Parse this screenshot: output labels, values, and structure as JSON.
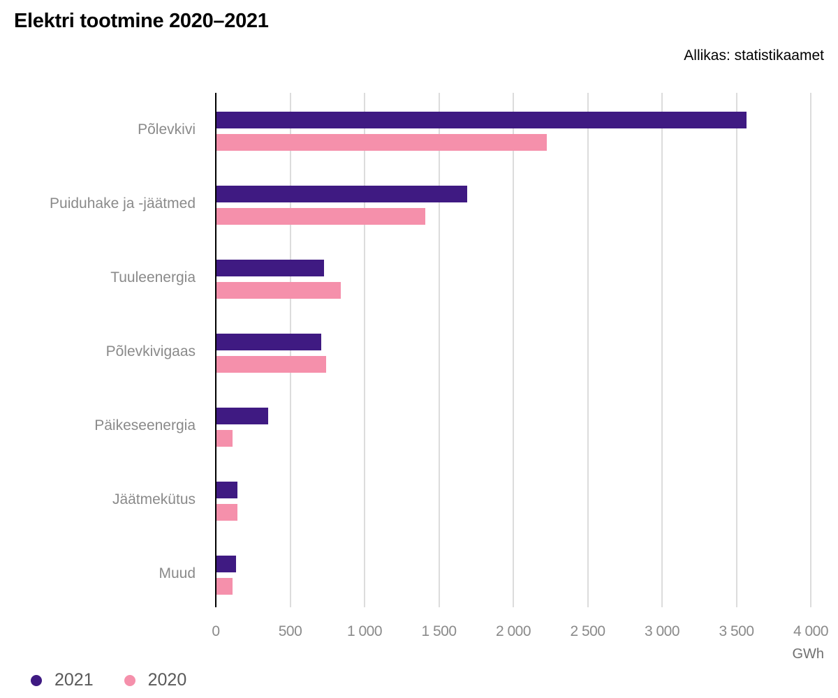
{
  "header": {
    "title": "Elektri tootmine 2020–2021",
    "source": "Allikas: statistikaamet"
  },
  "axis": {
    "ticks": [
      "0",
      "500",
      "1 000",
      "1 500",
      "2 000",
      "2 500",
      "3 000",
      "3 500",
      "4 000"
    ],
    "unit": "GWh"
  },
  "legend": {
    "items": [
      {
        "label": "2021",
        "color": "#3f1a82"
      },
      {
        "label": "2020",
        "color": "#f590ab"
      }
    ]
  },
  "categories": [
    "Põlevkivi",
    "Puiduhake ja -jäätmed",
    "Tuuleenergia",
    "Põlevkivigaas",
    "Päikeseenergia",
    "Jäätmekütus",
    "Muud"
  ],
  "chart_data": {
    "type": "bar",
    "orientation": "horizontal",
    "title": "Elektri tootmine 2020–2021",
    "subtitle": "Allikas: statistikaamet",
    "xlabel": "GWh",
    "ylabel": "",
    "xlim": [
      0,
      4000
    ],
    "xticks": [
      0,
      500,
      1000,
      1500,
      2000,
      2500,
      3000,
      3500,
      4000
    ],
    "grid": true,
    "legend_position": "bottom-left",
    "categories": [
      "Põlevkivi",
      "Puiduhake ja -jäätmed",
      "Tuuleenergia",
      "Põlevkivigaas",
      "Päikeseenergia",
      "Jäätmekütus",
      "Muud"
    ],
    "series": [
      {
        "name": "2021",
        "color": "#3f1a82",
        "values": [
          3570,
          1690,
          730,
          710,
          350,
          145,
          135
        ]
      },
      {
        "name": "2020",
        "color": "#f590ab",
        "values": [
          2225,
          1410,
          840,
          740,
          115,
          145,
          115
        ]
      }
    ]
  }
}
